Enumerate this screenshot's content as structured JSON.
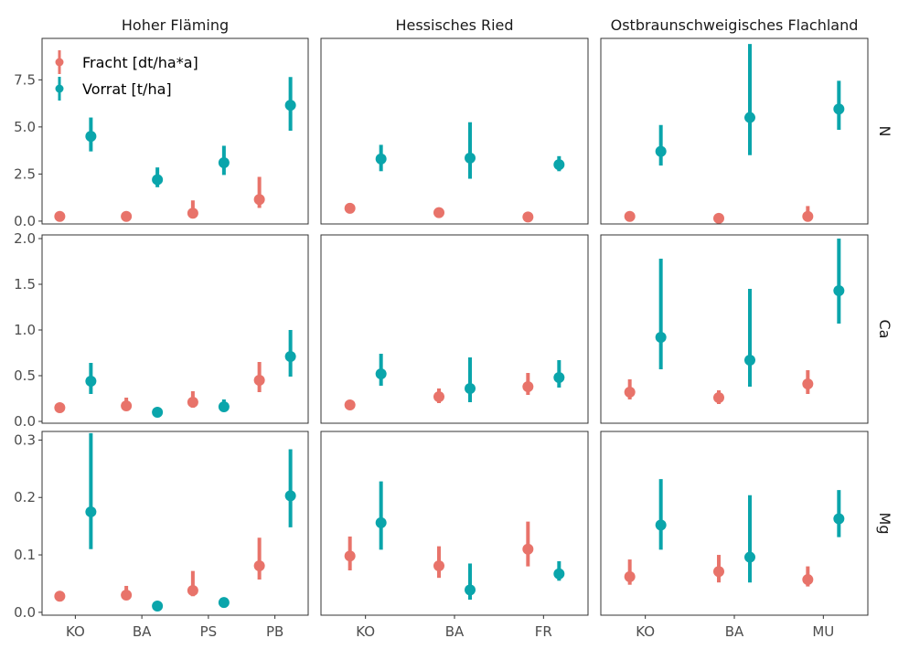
{
  "chart_data": {
    "type": "pointrange",
    "title": "",
    "xlabel": "",
    "ylabel": "",
    "grid": false,
    "legend": {
      "position": "top-left",
      "entries": [
        {
          "name": "Fracht [dt/ha*a]",
          "color": "#e8736a"
        },
        {
          "name": "Vorrat [t/ha]",
          "color": "#0aa5ab"
        }
      ]
    },
    "columns": [
      {
        "name": "Hoher Fläming",
        "categories": [
          "KO",
          "BA",
          "PS",
          "PB"
        ]
      },
      {
        "name": "Hessisches Ried",
        "categories": [
          "KO",
          "BA",
          "FR"
        ]
      },
      {
        "name": "Ostbraunschweigisches Flachland",
        "categories": [
          "KO",
          "BA",
          "MU"
        ]
      }
    ],
    "rows": [
      {
        "name": "N",
        "ylim": [
          -0.15,
          9.7
        ],
        "yticks": [
          0,
          2.5,
          5,
          7.5
        ],
        "ytick_labels": [
          "0.0",
          "2.5",
          "5.0",
          "7.5"
        ]
      },
      {
        "name": "Ca",
        "ylim": [
          -0.02,
          2.04
        ],
        "yticks": [
          0,
          0.5,
          1,
          1.5,
          2
        ],
        "ytick_labels": [
          "0.0",
          "0.5",
          "1.0",
          "1.5",
          "2.0"
        ]
      },
      {
        "name": "Mg",
        "ylim": [
          -0.005,
          0.315
        ],
        "yticks": [
          0,
          0.1,
          0.2,
          0.3
        ],
        "ytick_labels": [
          "0.0",
          "0.1",
          "0.2",
          "0.3"
        ]
      }
    ],
    "panels": [
      {
        "row": 0,
        "col": 0,
        "points": [
          {
            "cat": 0,
            "series": 0,
            "y": 0.25,
            "lo": 0.15,
            "hi": 0.35
          },
          {
            "cat": 0,
            "series": 1,
            "y": 4.5,
            "lo": 3.7,
            "hi": 5.5
          },
          {
            "cat": 1,
            "series": 0,
            "y": 0.25,
            "lo": 0.15,
            "hi": 0.35
          },
          {
            "cat": 1,
            "series": 1,
            "y": 2.2,
            "lo": 1.8,
            "hi": 2.85
          },
          {
            "cat": 2,
            "series": 0,
            "y": 0.42,
            "lo": 0.2,
            "hi": 1.1
          },
          {
            "cat": 2,
            "series": 1,
            "y": 3.1,
            "lo": 2.45,
            "hi": 4.0
          },
          {
            "cat": 3,
            "series": 0,
            "y": 1.15,
            "lo": 0.7,
            "hi": 2.35
          },
          {
            "cat": 3,
            "series": 1,
            "y": 6.15,
            "lo": 4.8,
            "hi": 7.65
          }
        ]
      },
      {
        "row": 0,
        "col": 1,
        "points": [
          {
            "cat": 0,
            "series": 0,
            "y": 0.68,
            "lo": 0.5,
            "hi": 0.95
          },
          {
            "cat": 0,
            "series": 1,
            "y": 3.3,
            "lo": 2.65,
            "hi": 4.05
          },
          {
            "cat": 1,
            "series": 0,
            "y": 0.45,
            "lo": 0.32,
            "hi": 0.62
          },
          {
            "cat": 1,
            "series": 1,
            "y": 3.35,
            "lo": 2.25,
            "hi": 5.25
          },
          {
            "cat": 2,
            "series": 0,
            "y": 0.22,
            "lo": 0.15,
            "hi": 0.3
          },
          {
            "cat": 2,
            "series": 1,
            "y": 3.0,
            "lo": 2.65,
            "hi": 3.45
          }
        ]
      },
      {
        "row": 0,
        "col": 2,
        "points": [
          {
            "cat": 0,
            "series": 0,
            "y": 0.25,
            "lo": 0.15,
            "hi": 0.35
          },
          {
            "cat": 0,
            "series": 1,
            "y": 3.7,
            "lo": 2.95,
            "hi": 5.1
          },
          {
            "cat": 1,
            "series": 0,
            "y": 0.15,
            "lo": 0.08,
            "hi": 0.22
          },
          {
            "cat": 1,
            "series": 1,
            "y": 5.5,
            "lo": 3.5,
            "hi": 9.4
          },
          {
            "cat": 2,
            "series": 0,
            "y": 0.25,
            "lo": 0.1,
            "hi": 0.8
          },
          {
            "cat": 2,
            "series": 1,
            "y": 5.95,
            "lo": 4.85,
            "hi": 7.45
          }
        ]
      },
      {
        "row": 1,
        "col": 0,
        "points": [
          {
            "cat": 0,
            "series": 0,
            "y": 0.15,
            "lo": 0.11,
            "hi": 0.19
          },
          {
            "cat": 0,
            "series": 1,
            "y": 0.44,
            "lo": 0.3,
            "hi": 0.64
          },
          {
            "cat": 1,
            "series": 0,
            "y": 0.17,
            "lo": 0.12,
            "hi": 0.26
          },
          {
            "cat": 1,
            "series": 1,
            "y": 0.1,
            "lo": 0.08,
            "hi": 0.13
          },
          {
            "cat": 2,
            "series": 0,
            "y": 0.21,
            "lo": 0.15,
            "hi": 0.33
          },
          {
            "cat": 2,
            "series": 1,
            "y": 0.16,
            "lo": 0.12,
            "hi": 0.24
          },
          {
            "cat": 3,
            "series": 0,
            "y": 0.45,
            "lo": 0.32,
            "hi": 0.65
          },
          {
            "cat": 3,
            "series": 1,
            "y": 0.71,
            "lo": 0.49,
            "hi": 1.0
          }
        ]
      },
      {
        "row": 1,
        "col": 1,
        "points": [
          {
            "cat": 0,
            "series": 0,
            "y": 0.18,
            "lo": 0.15,
            "hi": 0.22
          },
          {
            "cat": 0,
            "series": 1,
            "y": 0.52,
            "lo": 0.39,
            "hi": 0.74
          },
          {
            "cat": 1,
            "series": 0,
            "y": 0.27,
            "lo": 0.2,
            "hi": 0.36
          },
          {
            "cat": 1,
            "series": 1,
            "y": 0.36,
            "lo": 0.21,
            "hi": 0.7
          },
          {
            "cat": 2,
            "series": 0,
            "y": 0.38,
            "lo": 0.29,
            "hi": 0.53
          },
          {
            "cat": 2,
            "series": 1,
            "y": 0.48,
            "lo": 0.37,
            "hi": 0.67
          }
        ]
      },
      {
        "row": 1,
        "col": 2,
        "points": [
          {
            "cat": 0,
            "series": 0,
            "y": 0.32,
            "lo": 0.24,
            "hi": 0.46
          },
          {
            "cat": 0,
            "series": 1,
            "y": 0.92,
            "lo": 0.57,
            "hi": 1.78
          },
          {
            "cat": 1,
            "series": 0,
            "y": 0.26,
            "lo": 0.19,
            "hi": 0.34
          },
          {
            "cat": 1,
            "series": 1,
            "y": 0.67,
            "lo": 0.38,
            "hi": 1.45
          },
          {
            "cat": 2,
            "series": 0,
            "y": 0.41,
            "lo": 0.3,
            "hi": 0.56
          },
          {
            "cat": 2,
            "series": 1,
            "y": 1.43,
            "lo": 1.07,
            "hi": 2.0
          }
        ]
      },
      {
        "row": 2,
        "col": 0,
        "points": [
          {
            "cat": 0,
            "series": 0,
            "y": 0.028,
            "lo": 0.024,
            "hi": 0.032
          },
          {
            "cat": 0,
            "series": 1,
            "y": 0.175,
            "lo": 0.11,
            "hi": 0.312
          },
          {
            "cat": 1,
            "series": 0,
            "y": 0.03,
            "lo": 0.022,
            "hi": 0.046
          },
          {
            "cat": 1,
            "series": 1,
            "y": 0.011,
            "lo": 0.008,
            "hi": 0.014
          },
          {
            "cat": 2,
            "series": 0,
            "y": 0.038,
            "lo": 0.028,
            "hi": 0.072
          },
          {
            "cat": 2,
            "series": 1,
            "y": 0.017,
            "lo": 0.012,
            "hi": 0.025
          },
          {
            "cat": 3,
            "series": 0,
            "y": 0.081,
            "lo": 0.057,
            "hi": 0.13
          },
          {
            "cat": 3,
            "series": 1,
            "y": 0.203,
            "lo": 0.148,
            "hi": 0.284
          }
        ]
      },
      {
        "row": 2,
        "col": 1,
        "points": [
          {
            "cat": 0,
            "series": 0,
            "y": 0.098,
            "lo": 0.073,
            "hi": 0.132
          },
          {
            "cat": 0,
            "series": 1,
            "y": 0.156,
            "lo": 0.109,
            "hi": 0.228
          },
          {
            "cat": 1,
            "series": 0,
            "y": 0.081,
            "lo": 0.06,
            "hi": 0.115
          },
          {
            "cat": 1,
            "series": 1,
            "y": 0.039,
            "lo": 0.022,
            "hi": 0.085
          },
          {
            "cat": 2,
            "series": 0,
            "y": 0.11,
            "lo": 0.08,
            "hi": 0.158
          },
          {
            "cat": 2,
            "series": 1,
            "y": 0.067,
            "lo": 0.055,
            "hi": 0.089
          }
        ]
      },
      {
        "row": 2,
        "col": 2,
        "points": [
          {
            "cat": 0,
            "series": 0,
            "y": 0.062,
            "lo": 0.048,
            "hi": 0.092
          },
          {
            "cat": 0,
            "series": 1,
            "y": 0.152,
            "lo": 0.109,
            "hi": 0.232
          },
          {
            "cat": 1,
            "series": 0,
            "y": 0.071,
            "lo": 0.052,
            "hi": 0.1
          },
          {
            "cat": 1,
            "series": 1,
            "y": 0.096,
            "lo": 0.052,
            "hi": 0.204
          },
          {
            "cat": 2,
            "series": 0,
            "y": 0.057,
            "lo": 0.045,
            "hi": 0.08
          },
          {
            "cat": 2,
            "series": 1,
            "y": 0.163,
            "lo": 0.131,
            "hi": 0.213
          }
        ]
      }
    ]
  }
}
